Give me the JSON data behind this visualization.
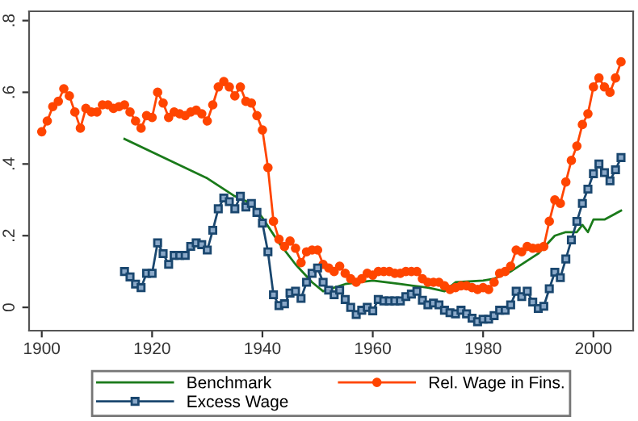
{
  "chart_data": {
    "type": "line",
    "xlim": [
      1897.7,
      2007.2
    ],
    "xticks": [
      1900,
      1920,
      1940,
      1960,
      1980,
      2000
    ],
    "ylim": [
      -0.065,
      0.826
    ],
    "yticks": [
      {
        "value": 0,
        "label": "0"
      },
      {
        "value": 0.2,
        "label": ".2"
      },
      {
        "value": 0.4,
        "label": ".4"
      },
      {
        "value": 0.6,
        "label": ".6"
      },
      {
        "value": 0.8,
        "label": ".8"
      }
    ],
    "grid": false,
    "legend": "bottom",
    "series": [
      {
        "name": "Benchmark",
        "color": "#1a7a1a",
        "marker": "none",
        "x": [
          1915,
          1930,
          1935,
          1938,
          1940,
          1943,
          1946,
          1949,
          1951,
          1955,
          1960,
          1965,
          1970,
          1973,
          1975,
          1980,
          1982,
          1985,
          1990,
          1993,
          1995,
          1997,
          1998,
          1999,
          2000,
          2002,
          2005
        ],
        "values": [
          0.47,
          0.36,
          0.31,
          0.29,
          0.25,
          0.18,
          0.12,
          0.07,
          0.045,
          0.065,
          0.075,
          0.065,
          0.055,
          0.045,
          0.07,
          0.075,
          0.08,
          0.1,
          0.15,
          0.2,
          0.21,
          0.21,
          0.23,
          0.21,
          0.245,
          0.245,
          0.27
        ]
      },
      {
        "name": "Rel. Wage in Fins.",
        "color": "#ff4500",
        "marker": "circle",
        "x": [
          1900,
          1901,
          1902,
          1903,
          1904,
          1905,
          1906,
          1907,
          1908,
          1909,
          1910,
          1911,
          1912,
          1913,
          1914,
          1915,
          1916,
          1917,
          1918,
          1919,
          1920,
          1921,
          1922,
          1923,
          1924,
          1925,
          1926,
          1927,
          1928,
          1929,
          1930,
          1931,
          1932,
          1933,
          1934,
          1935,
          1936,
          1937,
          1938,
          1939,
          1940,
          1941,
          1942,
          1943,
          1944,
          1945,
          1946,
          1947,
          1948,
          1949,
          1950,
          1951,
          1952,
          1953,
          1954,
          1955,
          1956,
          1957,
          1958,
          1959,
          1960,
          1961,
          1962,
          1963,
          1964,
          1965,
          1966,
          1967,
          1968,
          1969,
          1970,
          1971,
          1972,
          1973,
          1974,
          1975,
          1976,
          1977,
          1978,
          1979,
          1980,
          1981,
          1982,
          1983,
          1984,
          1985,
          1986,
          1987,
          1988,
          1989,
          1990,
          1991,
          1992,
          1993,
          1994,
          1995,
          1996,
          1997,
          1998,
          1999,
          2000,
          2001,
          2002,
          2003,
          2004,
          2005
        ],
        "values": [
          0.49,
          0.52,
          0.56,
          0.575,
          0.61,
          0.59,
          0.545,
          0.5,
          0.555,
          0.545,
          0.545,
          0.565,
          0.565,
          0.555,
          0.56,
          0.565,
          0.545,
          0.52,
          0.5,
          0.535,
          0.53,
          0.6,
          0.57,
          0.53,
          0.545,
          0.54,
          0.535,
          0.545,
          0.55,
          0.54,
          0.52,
          0.565,
          0.615,
          0.63,
          0.615,
          0.59,
          0.615,
          0.575,
          0.57,
          0.535,
          0.495,
          0.39,
          0.24,
          0.19,
          0.17,
          0.185,
          0.165,
          0.125,
          0.155,
          0.16,
          0.16,
          0.12,
          0.11,
          0.1,
          0.115,
          0.095,
          0.08,
          0.07,
          0.08,
          0.095,
          0.09,
          0.1,
          0.1,
          0.1,
          0.095,
          0.095,
          0.1,
          0.1,
          0.1,
          0.08,
          0.07,
          0.07,
          0.07,
          0.06,
          0.05,
          0.055,
          0.06,
          0.06,
          0.055,
          0.05,
          0.055,
          0.05,
          0.07,
          0.095,
          0.1,
          0.115,
          0.16,
          0.155,
          0.17,
          0.165,
          0.165,
          0.17,
          0.24,
          0.3,
          0.29,
          0.35,
          0.41,
          0.45,
          0.51,
          0.54,
          0.615,
          0.64,
          0.615,
          0.6,
          0.64,
          0.685
        ]
      },
      {
        "name": "Excess Wage",
        "color": "#1a476f",
        "marker": "square",
        "x": [
          1915,
          1916,
          1917,
          1918,
          1919,
          1920,
          1921,
          1922,
          1923,
          1924,
          1925,
          1926,
          1927,
          1928,
          1929,
          1930,
          1931,
          1932,
          1933,
          1934,
          1935,
          1936,
          1937,
          1938,
          1939,
          1940,
          1941,
          1942,
          1943,
          1944,
          1945,
          1946,
          1947,
          1948,
          1949,
          1950,
          1951,
          1952,
          1953,
          1954,
          1955,
          1956,
          1957,
          1958,
          1959,
          1960,
          1961,
          1962,
          1963,
          1964,
          1965,
          1966,
          1967,
          1968,
          1969,
          1970,
          1971,
          1972,
          1973,
          1974,
          1975,
          1976,
          1977,
          1978,
          1979,
          1980,
          1981,
          1982,
          1983,
          1984,
          1985,
          1986,
          1987,
          1988,
          1989,
          1990,
          1991,
          1992,
          1993,
          1994,
          1995,
          1996,
          1997,
          1998,
          1999,
          2000,
          2001,
          2002,
          2003,
          2004,
          2005
        ],
        "values": [
          0.1,
          0.085,
          0.065,
          0.055,
          0.095,
          0.095,
          0.18,
          0.15,
          0.12,
          0.145,
          0.145,
          0.145,
          0.17,
          0.18,
          0.175,
          0.16,
          0.215,
          0.275,
          0.305,
          0.295,
          0.275,
          0.31,
          0.28,
          0.29,
          0.265,
          0.235,
          0.155,
          0.035,
          0.005,
          0.01,
          0.04,
          0.045,
          0.025,
          0.07,
          0.095,
          0.11,
          0.07,
          0.048,
          0.035,
          0.048,
          0.022,
          0.0,
          -0.02,
          -0.008,
          0.0,
          -0.01,
          0.022,
          0.018,
          0.018,
          0.018,
          0.018,
          0.03,
          0.037,
          0.045,
          0.02,
          0.007,
          0.012,
          0.007,
          -0.008,
          -0.015,
          -0.018,
          -0.008,
          -0.018,
          -0.03,
          -0.04,
          -0.033,
          -0.033,
          -0.023,
          -0.008,
          -0.008,
          0.007,
          0.045,
          0.03,
          0.045,
          0.015,
          -0.003,
          0.003,
          0.052,
          0.098,
          0.083,
          0.135,
          0.188,
          0.24,
          0.29,
          0.33,
          0.373,
          0.4,
          0.376,
          0.353,
          0.384,
          0.418
        ]
      }
    ]
  }
}
